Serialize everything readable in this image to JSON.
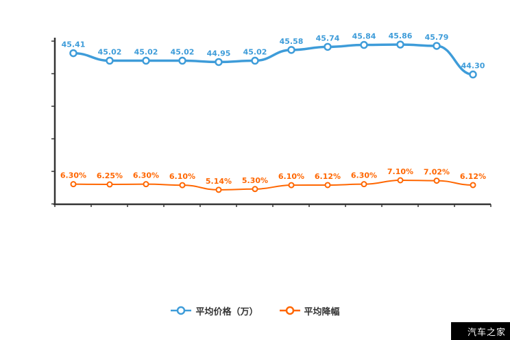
{
  "chart_data": {
    "type": "line",
    "title": "",
    "xlabel": "",
    "ylabel": "",
    "grid": false,
    "legend_position": "bottom",
    "axis_color": "#333333",
    "background": "#ffffff",
    "x_tick_count": 13,
    "y_tick_count": 6,
    "series": [
      {
        "name": "平均价格（万）",
        "color": "#3E9CD9",
        "values": [
          45.41,
          45.02,
          45.02,
          45.02,
          44.95,
          45.02,
          45.58,
          45.74,
          45.84,
          45.86,
          45.79,
          44.3
        ],
        "labels": [
          "45.41",
          "45.02",
          "45.02",
          "45.02",
          "44.95",
          "45.02",
          "45.58",
          "45.74",
          "45.84",
          "45.86",
          "45.79",
          "44.30"
        ]
      },
      {
        "name": "平均降幅",
        "color": "#FF6600",
        "values": [
          6.3,
          6.25,
          6.3,
          6.1,
          5.14,
          5.3,
          6.1,
          6.12,
          6.3,
          7.1,
          7.02,
          6.12
        ],
        "labels": [
          "6.30%",
          "6.25%",
          "6.30%",
          "6.10%",
          "5.14%",
          "5.30%",
          "6.10%",
          "6.12%",
          "6.30%",
          "7.10%",
          "7.02%",
          "6.12%"
        ]
      }
    ]
  },
  "legend": {
    "items": [
      {
        "label": "平均价格（万）"
      },
      {
        "label": "平均降幅"
      }
    ]
  },
  "watermark": {
    "text": "汽车之家",
    "bg": "#000000",
    "fg": "#ffffff"
  }
}
